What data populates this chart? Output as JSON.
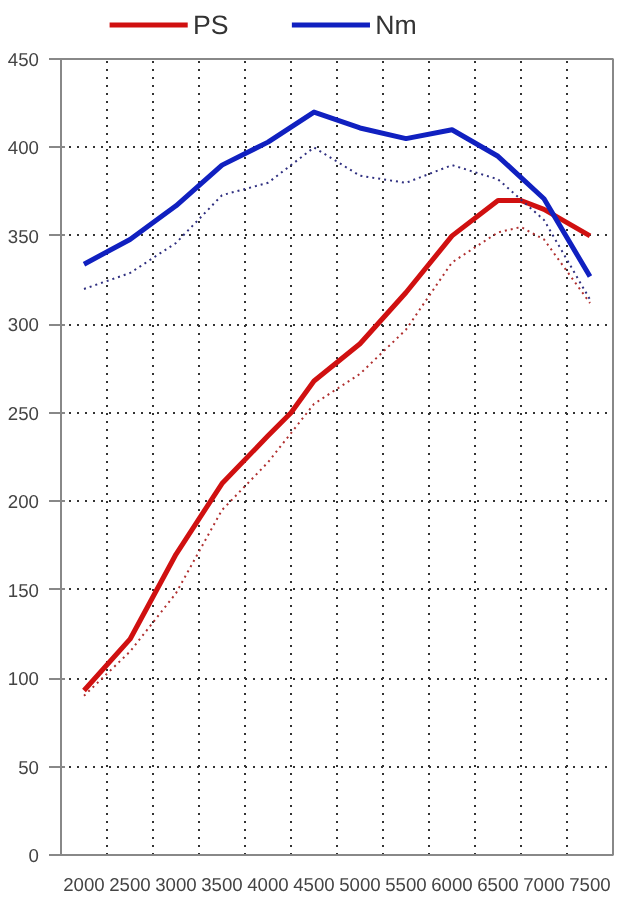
{
  "chart_data": {
    "type": "line",
    "x": [
      2000,
      2500,
      3000,
      3500,
      4000,
      4500,
      5000,
      5500,
      6000,
      6500,
      7000,
      7500
    ],
    "xlim": [
      1750,
      7750
    ],
    "xticks": [
      2000,
      2500,
      3000,
      3500,
      4000,
      4500,
      5000,
      5500,
      6000,
      6500,
      7000,
      7500
    ],
    "ylim": [
      0,
      450
    ],
    "yticks": [
      0,
      50,
      100,
      150,
      200,
      250,
      300,
      350,
      400,
      450
    ],
    "grid": true,
    "legend": "top",
    "marker": "none",
    "series": [
      {
        "name": "PS",
        "color": "#d01010",
        "line_style": "solid",
        "x": [
          2000,
          2500,
          3000,
          3500,
          4000,
          4250,
          4500,
          5000,
          5500,
          6000,
          6500,
          6750,
          7000,
          7500
        ],
        "values": [
          93,
          122,
          170,
          210,
          237,
          250,
          268,
          289,
          318,
          350,
          370,
          370,
          365,
          350
        ]
      },
      {
        "name": "Nm",
        "color": "#1020c0",
        "line_style": "solid",
        "values": [
          334,
          348,
          367,
          390,
          403,
          420,
          411,
          405,
          410,
          395,
          371,
          327
        ]
      },
      {
        "color": "#b03030",
        "line_style": "dotted",
        "x": [
          2000,
          2500,
          3000,
          3500,
          4000,
          4500,
          5000,
          5500,
          6000,
          6500,
          6750,
          7000,
          7500
        ],
        "values": [
          90,
          115,
          148,
          195,
          222,
          255,
          272,
          297,
          335,
          352,
          355,
          348,
          312
        ]
      },
      {
        "color": "#303080",
        "line_style": "dotted",
        "values": [
          320,
          329,
          346,
          373,
          380,
          400,
          384,
          380,
          390,
          382,
          359,
          314
        ]
      }
    ]
  }
}
